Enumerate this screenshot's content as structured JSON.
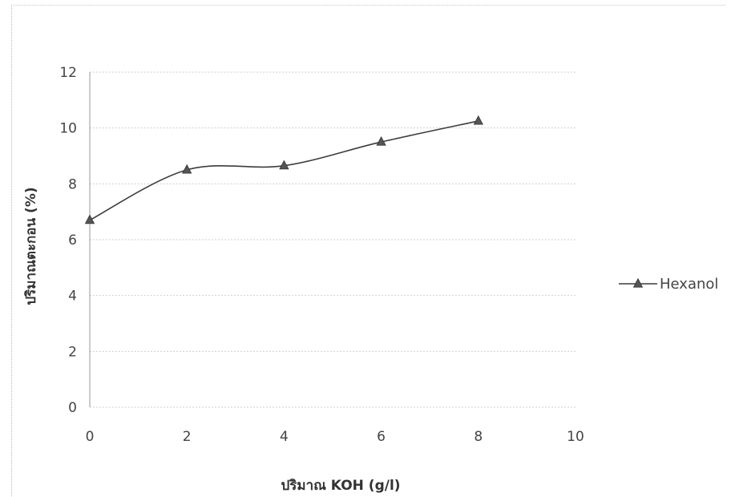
{
  "chart_data": {
    "type": "line",
    "title": "",
    "xlabel": "ปริมาณ KOH (g/l)",
    "ylabel": "ปริมาณตะกอน (%)",
    "xlim": [
      0,
      10
    ],
    "ylim": [
      0,
      12
    ],
    "xticks": [
      "0",
      "2",
      "4",
      "6",
      "8",
      "10"
    ],
    "yticks": [
      "0",
      "2",
      "4",
      "6",
      "8",
      "10",
      "12"
    ],
    "grid": true,
    "smooth": true,
    "legend_position": "right",
    "series": [
      {
        "name": "Hexanol",
        "x": [
          0,
          2,
          4,
          6,
          8
        ],
        "y": [
          6.7,
          8.5,
          8.65,
          9.5,
          10.25
        ],
        "color": "#3c3c3c",
        "marker": "triangle"
      }
    ]
  }
}
